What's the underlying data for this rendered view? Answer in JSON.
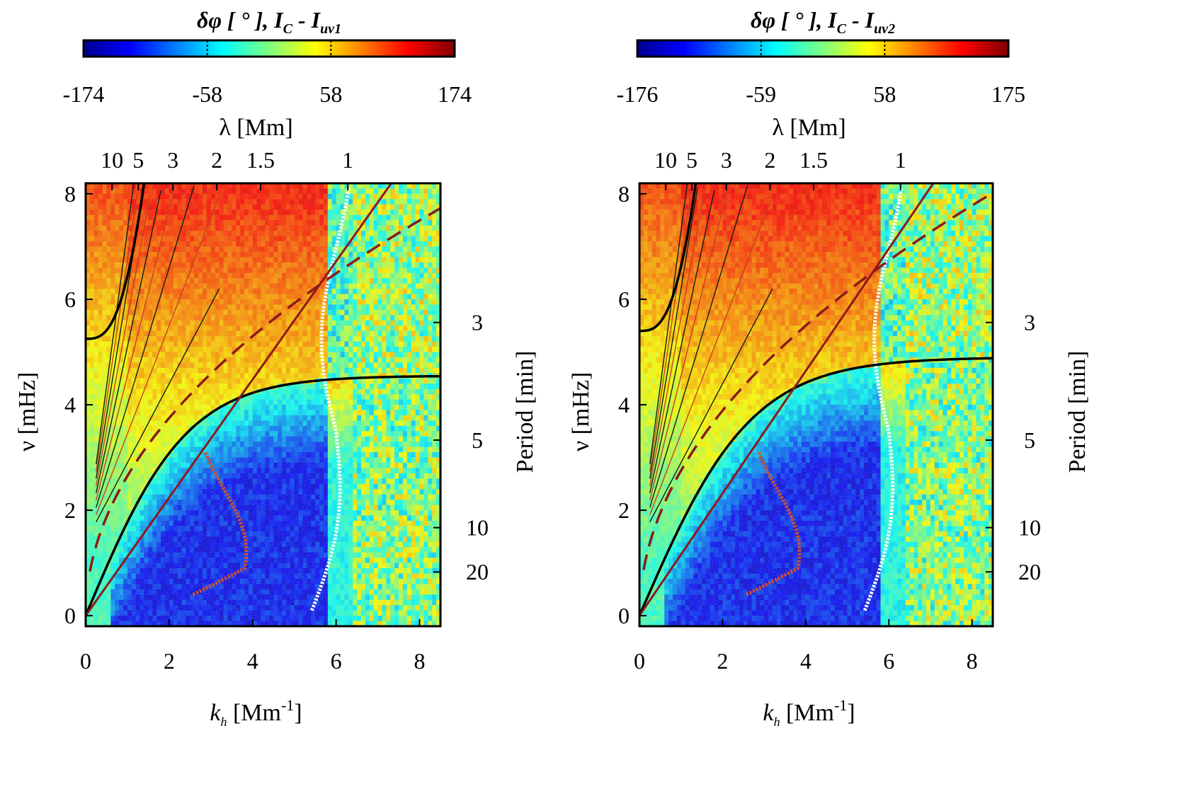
{
  "chart_data": [
    {
      "type": "heatmap",
      "colorbar": {
        "title_prefix": "δφ [ ° ],",
        "title_main": "I",
        "title_sub1": "C",
        "title_dash": " - I",
        "title_sub2": "uv1",
        "ticks": [
          "-174",
          "-58",
          "58",
          "174"
        ],
        "range": [
          -174,
          174
        ]
      },
      "xlabel_main": "k",
      "xlabel_sub": "h",
      "xlabel_unit": "[Mm",
      "xlabel_exp": "-1",
      "xlabel_close": "]",
      "ylabel": "ν [mHz]",
      "y2label": "Period [min]",
      "toplabel": "λ [Mm]",
      "xlim": [
        0,
        8.5
      ],
      "ylim": [
        -0.2,
        8.2
      ],
      "x_ticks": [
        0,
        2,
        4,
        6,
        8
      ],
      "y_ticks": [
        0,
        2,
        4,
        6,
        8
      ],
      "period_ticks": [
        {
          "label": "3",
          "freq": 5.56
        },
        {
          "label": "5",
          "freq": 3.33
        },
        {
          "label": "10",
          "freq": 1.67
        },
        {
          "label": "20",
          "freq": 0.83
        }
      ],
      "lambda_ticks": [
        {
          "label": "10",
          "k": 0.63
        },
        {
          "label": "5",
          "k": 1.26
        },
        {
          "label": "3",
          "k": 2.09
        },
        {
          "label": "2",
          "k": 3.14
        },
        {
          "label": "1.5",
          "k": 4.19
        },
        {
          "label": "1",
          "k": 6.28
        }
      ],
      "curves": {
        "upper_black": {
          "f0": 5.25,
          "slope": 1.33,
          "kmax": 7.0
        },
        "lower_black": {
          "fmax": 4.55,
          "slope": 1.5
        },
        "solid_red": {
          "slope": 1.12
        },
        "dashed_red": {
          "coef": 2.65,
          "kmin": 0.1
        }
      }
    },
    {
      "type": "heatmap",
      "colorbar": {
        "title_prefix": "δφ [ ° ],",
        "title_main": "I",
        "title_sub1": "C",
        "title_dash": " - I",
        "title_sub2": "uv2",
        "ticks": [
          "-176",
          "-59",
          "58",
          "175"
        ],
        "range": [
          -176,
          175
        ]
      },
      "xlabel_main": "k",
      "xlabel_sub": "h",
      "xlabel_unit": "[Mm",
      "xlabel_exp": "-1",
      "xlabel_close": "]",
      "ylabel": "ν [mHz]",
      "y2label": "Period [min]",
      "toplabel": "λ [Mm]",
      "xlim": [
        0,
        8.5
      ],
      "ylim": [
        -0.2,
        8.2
      ],
      "x_ticks": [
        0,
        2,
        4,
        6,
        8
      ],
      "y_ticks": [
        0,
        2,
        4,
        6,
        8
      ],
      "period_ticks": [
        {
          "label": "3",
          "freq": 5.56
        },
        {
          "label": "5",
          "freq": 3.33
        },
        {
          "label": "10",
          "freq": 1.67
        },
        {
          "label": "20",
          "freq": 0.83
        }
      ],
      "lambda_ticks": [
        {
          "label": "10",
          "k": 0.63
        },
        {
          "label": "5",
          "k": 1.26
        },
        {
          "label": "3",
          "k": 2.09
        },
        {
          "label": "2",
          "k": 3.14
        },
        {
          "label": "1.5",
          "k": 4.19
        },
        {
          "label": "1",
          "k": 6.28
        }
      ],
      "curves": {
        "upper_black": {
          "f0": 5.4,
          "slope": 1.37,
          "kmax": 7.0
        },
        "lower_black": {
          "fmax": 4.9,
          "slope": 1.45
        },
        "solid_red": {
          "slope": 1.16
        },
        "dashed_red": {
          "coef": 2.75,
          "kmin": 0.1
        }
      }
    }
  ]
}
